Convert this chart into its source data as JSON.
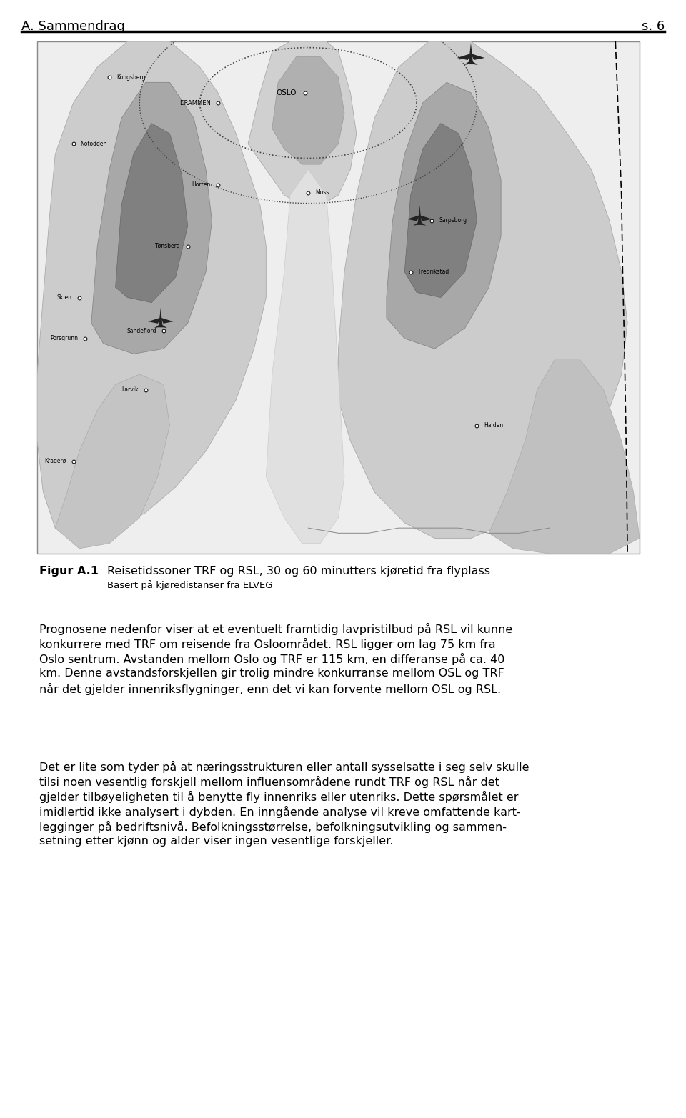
{
  "header_left": "A. Sammendrag",
  "header_right": "s. 6",
  "figure_label": "Figur A.1",
  "figure_caption_main": "Reisetidssoner TRF og RSL, 30 og 60 minutters kjøretid fra flyplass",
  "figure_caption_sub": "Basert på kjøredistanser fra ELVEG",
  "paragraph1_lines": [
    "Prognosene nedenfor viser at et eventuelt framtidig lavpristilbud på RSL vil kunne",
    "konkurrere med TRF om reisende fra Osloområdet. RSL ligger om lag 75 km fra",
    "Oslo sentrum. Avstanden mellom Oslo og TRF er 115 km, en differanse på ca. 40",
    "km. Denne avstandsforskjellen gir trolig mindre konkurranse mellom OSL og TRF",
    "når det gjelder innenriksflygninger, enn det vi kan forvente mellom OSL og RSL."
  ],
  "paragraph2_lines": [
    "Det er lite som tyder på at næringsstrukturen eller antall sysselsatte i seg selv skulle",
    "tilsi noen vesentlig forskjell mellom influensområdene rundt TRF og RSL når det",
    "gjelder tilbøyeligheten til å benytte fly innenriks eller utenriks. Dette spørsmålet er",
    "imidlertid ikke analysert i dybden. En inngående analyse vil kreve omfattende kart-",
    "legginger på bedriftsnivå. Befolkningsstørrelse, befolkningsutvikling og sammen-",
    "setning etter kjønn og alder viser ingen vesentlige forskjeller."
  ],
  "bg_color": "#ffffff",
  "text_color": "#000000",
  "fig_width": 9.6,
  "fig_height": 15.65
}
